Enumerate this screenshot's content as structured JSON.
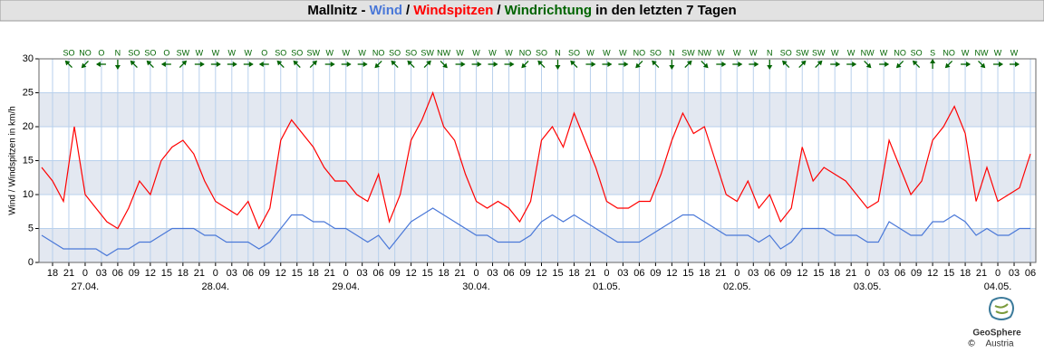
{
  "chart_data": {
    "type": "line",
    "title_parts": [
      {
        "text": "Mallnitz -",
        "color": "#000000"
      },
      {
        "text": "/",
        "color": "#000000"
      },
      {
        "text": "/",
        "color": "#000000"
      },
      {
        "text": "in den letzten 7 Tagen",
        "color": "#000000"
      }
    ],
    "y_label": "Wind / Windspitzen in km/h",
    "x": [
      -8,
      -6,
      -4,
      -2,
      0,
      2,
      4,
      6,
      8,
      10,
      12,
      14,
      16,
      18,
      20,
      22,
      24,
      26,
      28,
      30,
      32,
      34,
      36,
      38,
      40,
      42,
      44,
      46,
      48,
      50,
      52,
      54,
      56,
      58,
      60,
      62,
      64,
      66,
      68,
      70,
      72,
      74,
      76,
      78,
      80,
      82,
      84,
      86,
      88,
      90,
      92,
      94,
      96,
      98,
      100,
      102,
      104,
      106,
      108,
      110,
      112,
      114,
      116,
      118,
      120,
      122,
      124,
      126,
      128,
      130,
      132,
      134,
      136,
      138,
      140,
      142,
      144,
      146,
      148,
      150,
      152,
      154,
      156,
      158,
      160,
      162,
      164,
      166,
      168,
      170,
      172,
      174
    ],
    "series": [
      {
        "name": "Windspitzen",
        "color": "#ff0000",
        "values": [
          14,
          12,
          9,
          20,
          10,
          8,
          6,
          5,
          8,
          12,
          10,
          15,
          17,
          18,
          16,
          12,
          9,
          8,
          7,
          9,
          5,
          8,
          18,
          21,
          19,
          17,
          14,
          12,
          12,
          10,
          9,
          13,
          6,
          10,
          18,
          21,
          25,
          20,
          18,
          13,
          9,
          8,
          9,
          8,
          6,
          9,
          18,
          20,
          17,
          22,
          18,
          14,
          9,
          8,
          8,
          9,
          9,
          13,
          18,
          22,
          19,
          20,
          15,
          10,
          9,
          12,
          8,
          10,
          6,
          8,
          17,
          12,
          14,
          13,
          12,
          10,
          8,
          9,
          18,
          14,
          10,
          12,
          18,
          20,
          23,
          19,
          9,
          14,
          9,
          10,
          11,
          16
        ]
      },
      {
        "name": "Wind",
        "color": "#4a78d8",
        "values": [
          4,
          3,
          2,
          2,
          2,
          2,
          1,
          2,
          2,
          3,
          3,
          4,
          5,
          5,
          5,
          4,
          4,
          3,
          3,
          3,
          2,
          3,
          5,
          7,
          7,
          6,
          6,
          5,
          5,
          4,
          3,
          4,
          2,
          4,
          6,
          7,
          8,
          7,
          6,
          5,
          4,
          4,
          3,
          3,
          3,
          4,
          6,
          7,
          6,
          7,
          6,
          5,
          4,
          3,
          3,
          3,
          4,
          5,
          6,
          7,
          7,
          6,
          5,
          4,
          4,
          4,
          3,
          4,
          2,
          3,
          5,
          5,
          5,
          4,
          4,
          4,
          3,
          3,
          6,
          5,
          4,
          4,
          6,
          6,
          7,
          6,
          4,
          5,
          4,
          4,
          5,
          5
        ]
      }
    ],
    "directions": {
      "name": "Windrichtung",
      "color": "#006400",
      "x": [
        -3,
        0,
        3,
        6,
        9,
        12,
        15,
        18,
        21,
        24,
        27,
        30,
        33,
        36,
        39,
        42,
        45,
        48,
        51,
        54,
        57,
        60,
        63,
        66,
        69,
        72,
        75,
        78,
        81,
        84,
        87,
        90,
        93,
        96,
        99,
        102,
        105,
        108,
        111,
        114,
        117,
        120,
        123,
        126,
        129,
        132,
        135,
        138,
        141,
        144,
        147,
        150,
        153,
        156,
        159,
        162,
        165,
        168,
        171
      ],
      "labels": [
        "SO",
        "NO",
        "O",
        "N",
        "SO",
        "SO",
        "O",
        "SW",
        "W",
        "W",
        "W",
        "W",
        "O",
        "SO",
        "SO",
        "SW",
        "W",
        "W",
        "W",
        "NO",
        "SO",
        "SO",
        "SW",
        "NW",
        "W",
        "W",
        "W",
        "W",
        "NO",
        "SO",
        "N",
        "SO",
        "W",
        "W",
        "W",
        "NO",
        "SO",
        "N",
        "SW",
        "NW",
        "W",
        "W",
        "W",
        "N",
        "SO",
        "SW",
        "SW",
        "W",
        "W",
        "NW",
        "W",
        "NO",
        "SO",
        "S",
        "NO",
        "W",
        "NW",
        "W",
        "W"
      ]
    },
    "xlim": [
      -8.5,
      175
    ],
    "xticks": [
      {
        "value": -6,
        "label": "18"
      },
      {
        "value": -3,
        "label": "21"
      },
      {
        "value": 0,
        "label": "0"
      },
      {
        "value": 3,
        "label": "03"
      },
      {
        "value": 6,
        "label": "06"
      },
      {
        "value": 9,
        "label": "09"
      },
      {
        "value": 12,
        "label": "12"
      },
      {
        "value": 15,
        "label": "15"
      },
      {
        "value": 18,
        "label": "18"
      },
      {
        "value": 21,
        "label": "21"
      },
      {
        "value": 24,
        "label": "0"
      },
      {
        "value": 27,
        "label": "03"
      },
      {
        "value": 30,
        "label": "06"
      },
      {
        "value": 33,
        "label": "09"
      },
      {
        "value": 36,
        "label": "12"
      },
      {
        "value": 39,
        "label": "15"
      },
      {
        "value": 42,
        "label": "18"
      },
      {
        "value": 45,
        "label": "21"
      },
      {
        "value": 48,
        "label": "0"
      },
      {
        "value": 51,
        "label": "03"
      },
      {
        "value": 54,
        "label": "06"
      },
      {
        "value": 57,
        "label": "09"
      },
      {
        "value": 60,
        "label": "12"
      },
      {
        "value": 63,
        "label": "15"
      },
      {
        "value": 66,
        "label": "18"
      },
      {
        "value": 69,
        "label": "21"
      },
      {
        "value": 72,
        "label": "0"
      },
      {
        "value": 75,
        "label": "03"
      },
      {
        "value": 78,
        "label": "06"
      },
      {
        "value": 81,
        "label": "09"
      },
      {
        "value": 84,
        "label": "12"
      },
      {
        "value": 87,
        "label": "15"
      },
      {
        "value": 90,
        "label": "18"
      },
      {
        "value": 93,
        "label": "21"
      },
      {
        "value": 96,
        "label": "0"
      },
      {
        "value": 99,
        "label": "03"
      },
      {
        "value": 102,
        "label": "06"
      },
      {
        "value": 105,
        "label": "09"
      },
      {
        "value": 108,
        "label": "12"
      },
      {
        "value": 111,
        "label": "15"
      },
      {
        "value": 114,
        "label": "18"
      },
      {
        "value": 117,
        "label": "21"
      },
      {
        "value": 120,
        "label": "0"
      },
      {
        "value": 123,
        "label": "03"
      },
      {
        "value": 126,
        "label": "06"
      },
      {
        "value": 129,
        "label": "09"
      },
      {
        "value": 132,
        "label": "12"
      },
      {
        "value": 135,
        "label": "15"
      },
      {
        "value": 138,
        "label": "18"
      },
      {
        "value": 141,
        "label": "21"
      },
      {
        "value": 144,
        "label": "0"
      },
      {
        "value": 147,
        "label": "03"
      },
      {
        "value": 150,
        "label": "06"
      },
      {
        "value": 153,
        "label": "09"
      },
      {
        "value": 156,
        "label": "12"
      },
      {
        "value": 159,
        "label": "15"
      },
      {
        "value": 162,
        "label": "18"
      },
      {
        "value": 165,
        "label": "21"
      },
      {
        "value": 168,
        "label": "0"
      },
      {
        "value": 171,
        "label": "03"
      },
      {
        "value": 174,
        "label": "06"
      }
    ],
    "date_ticks": [
      {
        "value": 0,
        "label": "27.04."
      },
      {
        "value": 24,
        "label": "28.04."
      },
      {
        "value": 48,
        "label": "29.04."
      },
      {
        "value": 72,
        "label": "30.04."
      },
      {
        "value": 96,
        "label": "01.05."
      },
      {
        "value": 120,
        "label": "02.05."
      },
      {
        "value": 144,
        "label": "03.05."
      },
      {
        "value": 168,
        "label": "04.05."
      }
    ],
    "ylim": [
      0,
      30
    ],
    "yticks": [
      0,
      5,
      10,
      15,
      20,
      25,
      30
    ],
    "grid": true,
    "band_color": "#e3e8f1",
    "grid_color": "#b8d0ec"
  },
  "logo": {
    "name": "GeoSphere",
    "sub": "Austria",
    "copyright": "©"
  }
}
